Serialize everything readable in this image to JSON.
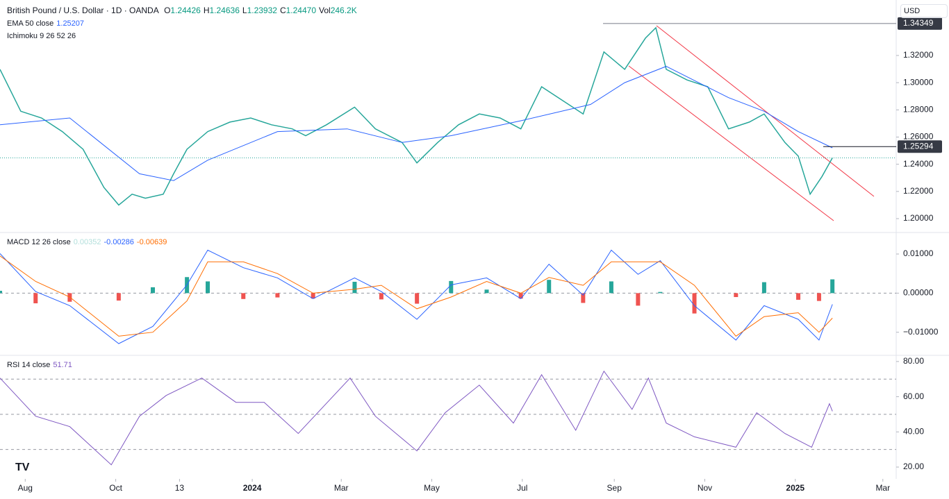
{
  "header": {
    "symbol": "British Pound / U.S. Dollar · 1D · OANDA",
    "ohlc": [
      {
        "label": "O",
        "value": "1.24426"
      },
      {
        "label": "H",
        "value": "1.24636"
      },
      {
        "label": "L",
        "value": "1.23932"
      },
      {
        "label": "C",
        "value": "1.24470"
      },
      {
        "label": "Vol",
        "value": "246.2K"
      }
    ],
    "currency": "USD"
  },
  "chart_data": [
    {
      "type": "line",
      "indicators": [
        "Ichimoku 9 26 52 26"
      ],
      "xlim": [
        -17,
        587
      ],
      "ylim": [
        1.1898,
        1.3608
      ],
      "yticks": [
        {
          "value": 1.2,
          "label": "1.20000"
        },
        {
          "value": 1.22,
          "label": "1.22000"
        },
        {
          "value": 1.24,
          "label": "1.24000"
        },
        {
          "value": 1.26,
          "label": "1.26000"
        },
        {
          "value": 1.28,
          "label": "1.28000"
        },
        {
          "value": 1.3,
          "label": "1.30000"
        },
        {
          "value": 1.32,
          "label": "1.32000"
        }
      ],
      "hlines": [
        1.34349,
        1.25294
      ],
      "series": [
        {
          "color": "#26a69a",
          "x": [
            -17,
            -3,
            11,
            25,
            39,
            53,
            63,
            72,
            81,
            93,
            100,
            109,
            123,
            138,
            152,
            166,
            180,
            189,
            203,
            222,
            236,
            254,
            264,
            278,
            292,
            306,
            320,
            334,
            348,
            362,
            376,
            390,
            404,
            418,
            425,
            432,
            446,
            460,
            474,
            488,
            498,
            512,
            521,
            529,
            537,
            544
          ],
          "values": [
            1.3098,
            1.279,
            1.274,
            1.264,
            1.251,
            1.223,
            1.21,
            1.218,
            1.215,
            1.218,
            1.233,
            1.251,
            1.264,
            1.271,
            1.274,
            1.269,
            1.266,
            1.261,
            1.269,
            1.282,
            1.266,
            1.256,
            1.241,
            1.256,
            1.269,
            1.277,
            1.274,
            1.266,
            1.297,
            1.287,
            1.277,
            1.3226,
            1.3098,
            1.3328,
            1.3404,
            1.3098,
            1.302,
            1.297,
            1.266,
            1.271,
            1.277,
            1.256,
            1.246,
            1.218,
            1.231,
            1.2447
          ]
        },
        {
          "name": "EMA 50 close",
          "color": "#2962ff",
          "x": [
            -17,
            30,
            77,
            100,
            123,
            170,
            217,
            254,
            287,
            334,
            381,
            404,
            432,
            474,
            498,
            521,
            544
          ],
          "values": [
            1.269,
            1.274,
            1.233,
            1.228,
            1.243,
            1.264,
            1.266,
            1.256,
            1.261,
            1.272,
            1.284,
            1.3,
            1.312,
            1.289,
            1.279,
            1.264,
            1.25207
          ]
        }
      ]
    },
    {
      "type": "line",
      "title": "MACD 12 26 close",
      "xlim": [
        -17,
        587
      ],
      "ylim": [
        -0.0159,
        0.0155
      ],
      "yticks": [
        {
          "value": 0.01,
          "label": "0.01000"
        },
        {
          "value": 0,
          "label": "0.00000"
        },
        {
          "value": -0.01,
          "label": "−0.01000"
        }
      ],
      "series": [
        {
          "type": "bar",
          "color": "#26a69a",
          "negative_color": "#ef5350",
          "x": [
            -17,
            7,
            30,
            63,
            86,
            109,
            123,
            147,
            170,
            194,
            222,
            240,
            264,
            287,
            311,
            334,
            353,
            376,
            395,
            413,
            428,
            451,
            479,
            498,
            521,
            535,
            544
          ],
          "values": [
            0.0006,
            -0.0026,
            -0.0022,
            -0.0019,
            0.0015,
            0.0041,
            0.003,
            -0.0015,
            -0.0011,
            -0.0014,
            0.0029,
            -0.0016,
            -0.0027,
            0.0031,
            0.0009,
            -0.0014,
            0.0034,
            -0.0025,
            0.003,
            -0.0032,
            0.0003,
            -0.0052,
            -0.001,
            0.0028,
            -0.0017,
            -0.002,
            0.00352
          ]
        },
        {
          "color": "#2962ff",
          "x": [
            -17,
            7,
            30,
            63,
            86,
            109,
            123,
            147,
            170,
            194,
            222,
            240,
            264,
            287,
            311,
            334,
            353,
            376,
            395,
            413,
            428,
            451,
            479,
            498,
            521,
            535,
            544
          ],
          "values": [
            0.0101,
            0.0004,
            -0.0032,
            -0.0129,
            -0.0085,
            0.0021,
            0.011,
            0.0065,
            0.0039,
            -0.0014,
            0.0039,
            0.0004,
            -0.0067,
            0.0021,
            0.0039,
            -0.0014,
            0.0074,
            -0.0005,
            0.011,
            0.0048,
            0.0083,
            -0.0032,
            -0.012,
            -0.0032,
            -0.0067,
            -0.012,
            -0.00286
          ]
        },
        {
          "color": "#ff6d00",
          "x": [
            -17,
            7,
            30,
            63,
            86,
            109,
            123,
            147,
            170,
            194,
            222,
            240,
            264,
            287,
            311,
            334,
            353,
            376,
            395,
            413,
            428,
            451,
            479,
            498,
            521,
            535,
            544
          ],
          "values": [
            0.0095,
            0.003,
            -0.001,
            -0.011,
            -0.01,
            -0.002,
            0.008,
            0.008,
            0.005,
            0.0,
            0.001,
            0.002,
            -0.004,
            -0.001,
            0.003,
            0.0,
            0.004,
            0.002,
            0.008,
            0.008,
            0.008,
            0.002,
            -0.011,
            -0.006,
            -0.005,
            -0.01,
            -0.00639
          ]
        }
      ]
    },
    {
      "type": "line",
      "title": "RSI 14 close",
      "xlim": [
        -17,
        587
      ],
      "ylim": [
        13.3,
        83.5
      ],
      "yticks": [
        {
          "value": 80,
          "label": "80.00"
        },
        {
          "value": 60,
          "label": "60.00"
        },
        {
          "value": 40,
          "label": "40.00"
        },
        {
          "value": 20,
          "label": "20.00"
        }
      ],
      "levels": [
        70,
        50,
        30
      ],
      "xticks": [
        {
          "value": 0,
          "label": "Aug"
        },
        {
          "value": 61,
          "label": "Oct"
        },
        {
          "value": 104,
          "label": "13"
        },
        {
          "value": 153,
          "label": "2024"
        },
        {
          "value": 213,
          "label": "Mar"
        },
        {
          "value": 274,
          "label": "May"
        },
        {
          "value": 335,
          "label": "Jul"
        },
        {
          "value": 397,
          "label": "Sep"
        },
        {
          "value": 458,
          "label": "Nov"
        },
        {
          "value": 519,
          "label": "2025"
        },
        {
          "value": 578,
          "label": "Mar"
        }
      ],
      "series": [
        {
          "color": "#7e57c2",
          "x": [
            -17,
            7,
            30,
            58,
            77,
            95,
            119,
            142,
            161,
            184,
            219,
            236,
            264,
            283,
            306,
            329,
            348,
            371,
            390,
            409,
            420,
            432,
            451,
            479,
            493,
            512,
            530,
            542,
            544
          ],
          "values": [
            70.6,
            48.9,
            43.0,
            21.3,
            48.9,
            60.7,
            70.6,
            56.8,
            56.8,
            39.1,
            70.6,
            48.9,
            29.2,
            50.9,
            66.6,
            45.0,
            72.5,
            40.9,
            74.5,
            52.8,
            70.6,
            45.0,
            37.2,
            31.3,
            50.9,
            39.1,
            31.3,
            56.0,
            51.71
          ]
        }
      ]
    }
  ]
}
